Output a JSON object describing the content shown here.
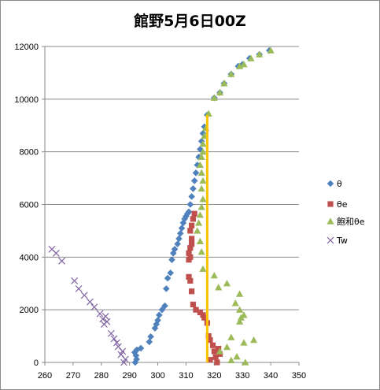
{
  "chart_data": {
    "type": "scatter",
    "title": "館野5月6日00Z",
    "xlim": [
      260,
      350
    ],
    "ylim": [
      0,
      12000
    ],
    "x_ticks": [
      "260",
      "270",
      "280",
      "290",
      "300",
      "310",
      "320",
      "330",
      "340",
      "350"
    ],
    "y_ticks": [
      "0",
      "2000",
      "4000",
      "6000",
      "8000",
      "10000",
      "12000"
    ],
    "grid": "horizontal",
    "legend_position": "right",
    "series": [
      {
        "name": "θ",
        "marker": "diamond",
        "color": "#4F81BD",
        "points": [
          [
            292.0,
            0
          ],
          [
            292.5,
            120
          ],
          [
            292.3,
            260
          ],
          [
            291.8,
            380
          ],
          [
            292.6,
            480
          ],
          [
            294.0,
            540
          ],
          [
            297.0,
            780
          ],
          [
            297.5,
            980
          ],
          [
            299.0,
            1300
          ],
          [
            299.5,
            1450
          ],
          [
            300.0,
            1600
          ],
          [
            300.5,
            1800
          ],
          [
            301.5,
            2000
          ],
          [
            302.5,
            2150
          ],
          [
            303.0,
            2800
          ],
          [
            303.5,
            3200
          ],
          [
            304.5,
            3400
          ],
          [
            305.0,
            3900
          ],
          [
            305.5,
            4150
          ],
          [
            306.0,
            4300
          ],
          [
            307.0,
            4500
          ],
          [
            307.5,
            4700
          ],
          [
            308.0,
            4900
          ],
          [
            308.5,
            5100
          ],
          [
            309.0,
            5300
          ],
          [
            309.5,
            5450
          ],
          [
            310.0,
            5550
          ],
          [
            310.5,
            5650
          ],
          [
            311.0,
            5720
          ],
          [
            311.5,
            6000
          ],
          [
            312.0,
            6300
          ],
          [
            312.5,
            6600
          ],
          [
            313.0,
            6900
          ],
          [
            313.5,
            7200
          ],
          [
            314.0,
            7500
          ],
          [
            314.5,
            7800
          ],
          [
            315.0,
            8100
          ],
          [
            315.5,
            8400
          ],
          [
            316.0,
            8700
          ],
          [
            316.5,
            8950
          ],
          [
            317.5,
            9400
          ],
          [
            320.0,
            10050
          ],
          [
            322.0,
            10250
          ],
          [
            323.5,
            10600
          ],
          [
            326.0,
            10950
          ],
          [
            328.5,
            11250
          ],
          [
            330.0,
            11320
          ],
          [
            332.5,
            11550
          ],
          [
            336.0,
            11700
          ],
          [
            339.5,
            11850
          ]
        ]
      },
      {
        "name": "θe",
        "marker": "square",
        "color": "#C0504D",
        "points": [
          [
            321.0,
            0
          ],
          [
            318.5,
            100
          ],
          [
            320.5,
            200
          ],
          [
            322.0,
            320
          ],
          [
            320.0,
            420
          ],
          [
            321.5,
            520
          ],
          [
            319.5,
            650
          ],
          [
            318.5,
            850
          ],
          [
            318.0,
            1000
          ],
          [
            317.5,
            1500
          ],
          [
            316.5,
            1700
          ],
          [
            316.0,
            1800
          ],
          [
            315.0,
            1900
          ],
          [
            313.5,
            2000
          ],
          [
            312.5,
            2200
          ],
          [
            312.0,
            2700
          ],
          [
            311.5,
            3100
          ],
          [
            311.0,
            3250
          ],
          [
            311.0,
            3900
          ],
          [
            311.5,
            4000
          ],
          [
            311.0,
            4150
          ],
          [
            311.5,
            4350
          ],
          [
            312.0,
            4500
          ],
          [
            312.0,
            4700
          ],
          [
            311.5,
            5000
          ],
          [
            312.0,
            5200
          ],
          [
            312.5,
            5450
          ],
          [
            313.0,
            5650
          ]
        ]
      },
      {
        "name": "飽和θe",
        "marker": "triangle",
        "color": "#9BBB59",
        "points": [
          [
            331.0,
            0
          ],
          [
            326.0,
            80
          ],
          [
            328.0,
            220
          ],
          [
            322.0,
            420
          ],
          [
            324.5,
            580
          ],
          [
            330.5,
            750
          ],
          [
            334.0,
            850
          ],
          [
            326.0,
            950
          ],
          [
            329.0,
            1550
          ],
          [
            329.5,
            1700
          ],
          [
            330.5,
            1800
          ],
          [
            329.0,
            2000
          ],
          [
            327.5,
            2250
          ],
          [
            329.0,
            2600
          ],
          [
            321.5,
            2850
          ],
          [
            324.5,
            3000
          ],
          [
            320.0,
            3300
          ],
          [
            316.0,
            3550
          ],
          [
            315.5,
            4200
          ],
          [
            315.0,
            4600
          ],
          [
            314.0,
            5000
          ],
          [
            314.5,
            5300
          ],
          [
            315.0,
            5600
          ],
          [
            315.5,
            5900
          ],
          [
            316.0,
            6200
          ],
          [
            315.5,
            6600
          ],
          [
            316.0,
            6900
          ],
          [
            315.5,
            7200
          ],
          [
            315.0,
            7500
          ],
          [
            315.5,
            7800
          ],
          [
            316.0,
            8000
          ],
          [
            316.0,
            8300
          ],
          [
            316.5,
            8600
          ],
          [
            317.0,
            8900
          ],
          [
            318.0,
            9450
          ],
          [
            320.0,
            10050
          ],
          [
            322.0,
            10250
          ],
          [
            323.5,
            10600
          ],
          [
            326.0,
            10950
          ],
          [
            329.0,
            11250
          ],
          [
            330.5,
            11320
          ],
          [
            333.0,
            11550
          ],
          [
            336.0,
            11700
          ],
          [
            340.0,
            11850
          ]
        ]
      },
      {
        "name": "Tw",
        "marker": "x",
        "color": "#8064A2",
        "points": [
          [
            288.0,
            0
          ],
          [
            288.5,
            120
          ],
          [
            287.0,
            300
          ],
          [
            287.5,
            420
          ],
          [
            286.0,
            600
          ],
          [
            285.5,
            750
          ],
          [
            284.5,
            900
          ],
          [
            283.5,
            1100
          ],
          [
            281.0,
            1450
          ],
          [
            282.0,
            1550
          ],
          [
            280.5,
            1650
          ],
          [
            281.5,
            1750
          ],
          [
            279.5,
            1850
          ],
          [
            277.5,
            2100
          ],
          [
            276.0,
            2300
          ],
          [
            274.0,
            2550
          ],
          [
            272.0,
            2800
          ],
          [
            270.5,
            3100
          ],
          [
            266.0,
            3850
          ],
          [
            264.0,
            4150
          ],
          [
            262.5,
            4300
          ]
        ]
      }
    ],
    "vertical_line": {
      "x": 317.5,
      "y_from": 0,
      "y_to": 9400,
      "color": "#FFC000"
    }
  }
}
